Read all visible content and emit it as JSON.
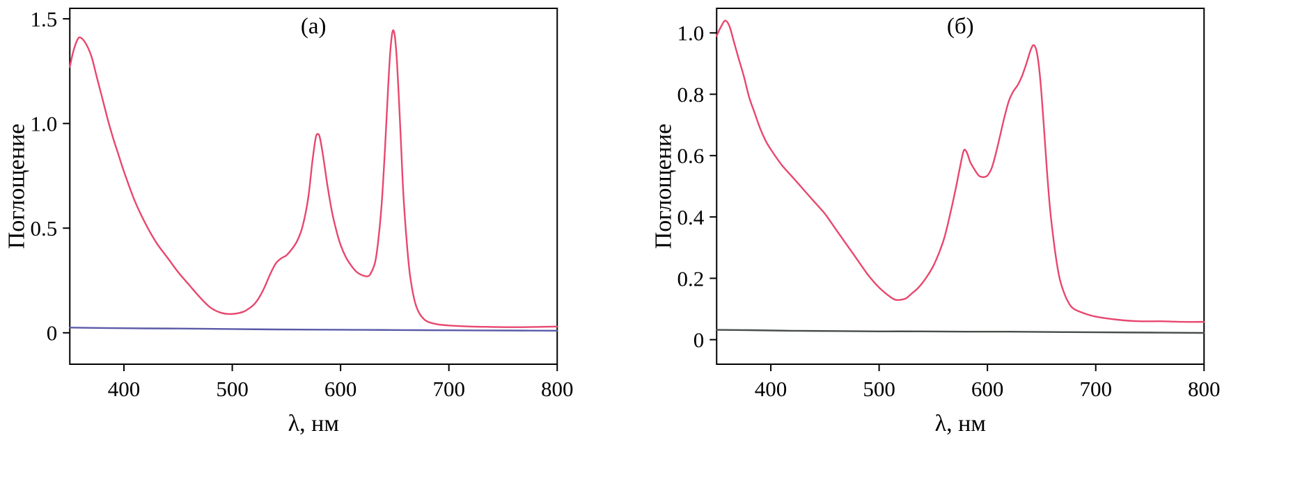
{
  "figure": {
    "background": "#ffffff",
    "frame_color": "#000000"
  },
  "chart_data": [
    {
      "type": "line",
      "panel_label": "(а)",
      "xlabel": "λ, нм",
      "ylabel": "Поглощение",
      "xlim": [
        350,
        800
      ],
      "ylim": [
        -0.15,
        1.55
      ],
      "xticks": [
        400,
        500,
        600,
        700,
        800
      ],
      "xtick_labels": [
        "400",
        "500",
        "600",
        "700",
        "800"
      ],
      "yticks": [
        0,
        0.5,
        1.0,
        1.5
      ],
      "ytick_labels": [
        "0",
        "0.5",
        "1.0",
        "1.5"
      ],
      "grid": false,
      "legend": "none",
      "series": [
        {
          "name": "red",
          "color": "#e8476d",
          "points": [
            [
              350,
              1.27
            ],
            [
              353,
              1.34
            ],
            [
              357,
              1.4
            ],
            [
              360,
              1.41
            ],
            [
              365,
              1.38
            ],
            [
              370,
              1.32
            ],
            [
              375,
              1.22
            ],
            [
              380,
              1.12
            ],
            [
              385,
              1.02
            ],
            [
              390,
              0.93
            ],
            [
              395,
              0.85
            ],
            [
              400,
              0.77
            ],
            [
              410,
              0.63
            ],
            [
              420,
              0.52
            ],
            [
              430,
              0.43
            ],
            [
              440,
              0.36
            ],
            [
              450,
              0.29
            ],
            [
              460,
              0.23
            ],
            [
              470,
              0.17
            ],
            [
              480,
              0.12
            ],
            [
              490,
              0.095
            ],
            [
              500,
              0.09
            ],
            [
              510,
              0.1
            ],
            [
              515,
              0.115
            ],
            [
              520,
              0.135
            ],
            [
              525,
              0.17
            ],
            [
              530,
              0.22
            ],
            [
              535,
              0.28
            ],
            [
              540,
              0.33
            ],
            [
              545,
              0.355
            ],
            [
              550,
              0.37
            ],
            [
              555,
              0.4
            ],
            [
              560,
              0.44
            ],
            [
              565,
              0.51
            ],
            [
              570,
              0.64
            ],
            [
              574,
              0.82
            ],
            [
              577,
              0.93
            ],
            [
              579,
              0.95
            ],
            [
              581,
              0.93
            ],
            [
              584,
              0.84
            ],
            [
              588,
              0.7
            ],
            [
              592,
              0.58
            ],
            [
              596,
              0.49
            ],
            [
              600,
              0.42
            ],
            [
              605,
              0.36
            ],
            [
              610,
              0.32
            ],
            [
              615,
              0.29
            ],
            [
              620,
              0.275
            ],
            [
              625,
              0.27
            ],
            [
              628,
              0.285
            ],
            [
              632,
              0.34
            ],
            [
              635,
              0.45
            ],
            [
              638,
              0.62
            ],
            [
              641,
              0.88
            ],
            [
              644,
              1.18
            ],
            [
              646,
              1.35
            ],
            [
              648,
              1.44
            ],
            [
              650,
              1.42
            ],
            [
              652,
              1.3
            ],
            [
              654,
              1.1
            ],
            [
              656,
              0.88
            ],
            [
              658,
              0.66
            ],
            [
              661,
              0.44
            ],
            [
              664,
              0.28
            ],
            [
              668,
              0.16
            ],
            [
              672,
              0.1
            ],
            [
              677,
              0.065
            ],
            [
              682,
              0.05
            ],
            [
              690,
              0.04
            ],
            [
              700,
              0.035
            ],
            [
              720,
              0.03
            ],
            [
              740,
              0.028
            ],
            [
              760,
              0.027
            ],
            [
              780,
              0.028
            ],
            [
              800,
              0.03
            ]
          ]
        },
        {
          "name": "blue",
          "color": "#5a5aa8",
          "points": [
            [
              350,
              0.025
            ],
            [
              380,
              0.023
            ],
            [
              420,
              0.021
            ],
            [
              460,
              0.02
            ],
            [
              500,
              0.018
            ],
            [
              540,
              0.016
            ],
            [
              580,
              0.015
            ],
            [
              620,
              0.014
            ],
            [
              660,
              0.013
            ],
            [
              700,
              0.012
            ],
            [
              750,
              0.011
            ],
            [
              800,
              0.01
            ]
          ]
        }
      ]
    },
    {
      "type": "line",
      "panel_label": "(б)",
      "xlabel": "λ, нм",
      "ylabel": "Поглощение",
      "xlim": [
        350,
        800
      ],
      "ylim": [
        -0.08,
        1.08
      ],
      "xticks": [
        400,
        500,
        600,
        700,
        800
      ],
      "xtick_labels": [
        "400",
        "500",
        "600",
        "700",
        "800"
      ],
      "yticks": [
        0,
        0.2,
        0.4,
        0.6,
        0.8,
        1.0
      ],
      "ytick_labels": [
        "0",
        "0.2",
        "0.4",
        "0.6",
        "0.8",
        "1.0"
      ],
      "grid": false,
      "legend": "none",
      "series": [
        {
          "name": "red",
          "color": "#e8476d",
          "points": [
            [
              350,
              0.99
            ],
            [
              354,
              1.02
            ],
            [
              358,
              1.04
            ],
            [
              362,
              1.02
            ],
            [
              366,
              0.97
            ],
            [
              370,
              0.92
            ],
            [
              375,
              0.86
            ],
            [
              380,
              0.79
            ],
            [
              385,
              0.74
            ],
            [
              390,
              0.69
            ],
            [
              395,
              0.65
            ],
            [
              400,
              0.62
            ],
            [
              410,
              0.57
            ],
            [
              420,
              0.53
            ],
            [
              430,
              0.49
            ],
            [
              440,
              0.45
            ],
            [
              450,
              0.41
            ],
            [
              460,
              0.36
            ],
            [
              470,
              0.31
            ],
            [
              480,
              0.26
            ],
            [
              490,
              0.21
            ],
            [
              500,
              0.17
            ],
            [
              510,
              0.14
            ],
            [
              515,
              0.13
            ],
            [
              520,
              0.13
            ],
            [
              525,
              0.135
            ],
            [
              530,
              0.15
            ],
            [
              535,
              0.165
            ],
            [
              540,
              0.185
            ],
            [
              545,
              0.21
            ],
            [
              550,
              0.24
            ],
            [
              555,
              0.28
            ],
            [
              560,
              0.33
            ],
            [
              565,
              0.4
            ],
            [
              570,
              0.48
            ],
            [
              574,
              0.55
            ],
            [
              578,
              0.615
            ],
            [
              581,
              0.61
            ],
            [
              584,
              0.58
            ],
            [
              588,
              0.555
            ],
            [
              592,
              0.535
            ],
            [
              596,
              0.53
            ],
            [
              600,
              0.535
            ],
            [
              604,
              0.56
            ],
            [
              608,
              0.61
            ],
            [
              612,
              0.67
            ],
            [
              616,
              0.73
            ],
            [
              620,
              0.78
            ],
            [
              624,
              0.81
            ],
            [
              628,
              0.83
            ],
            [
              632,
              0.86
            ],
            [
              636,
              0.9
            ],
            [
              640,
              0.945
            ],
            [
              643,
              0.96
            ],
            [
              646,
              0.93
            ],
            [
              649,
              0.84
            ],
            [
              652,
              0.7
            ],
            [
              655,
              0.55
            ],
            [
              658,
              0.42
            ],
            [
              662,
              0.3
            ],
            [
              666,
              0.21
            ],
            [
              670,
              0.16
            ],
            [
              675,
              0.12
            ],
            [
              680,
              0.1
            ],
            [
              690,
              0.085
            ],
            [
              700,
              0.075
            ],
            [
              720,
              0.065
            ],
            [
              740,
              0.06
            ],
            [
              760,
              0.06
            ],
            [
              780,
              0.058
            ],
            [
              800,
              0.058
            ]
          ]
        },
        {
          "name": "dark",
          "color": "#474d48",
          "points": [
            [
              350,
              0.032
            ],
            [
              380,
              0.031
            ],
            [
              420,
              0.029
            ],
            [
              460,
              0.028
            ],
            [
              500,
              0.027
            ],
            [
              540,
              0.027
            ],
            [
              580,
              0.026
            ],
            [
              620,
              0.026
            ],
            [
              660,
              0.025
            ],
            [
              700,
              0.024
            ],
            [
              750,
              0.023
            ],
            [
              800,
              0.022
            ]
          ]
        }
      ]
    }
  ]
}
